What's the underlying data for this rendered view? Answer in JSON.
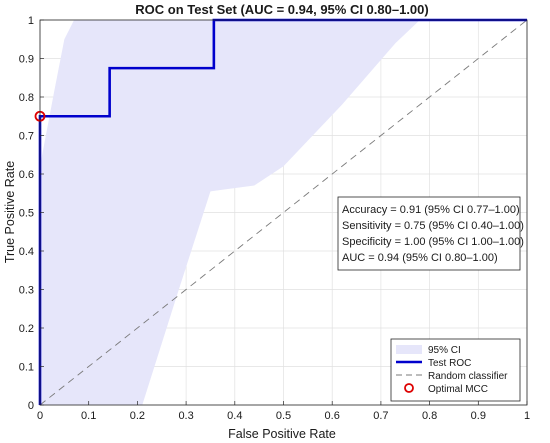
{
  "chart_data": {
    "type": "line",
    "title": "ROC on Test Set (AUC = 0.94, 95% CI 0.80–1.00)",
    "xlabel": "False Positive Rate",
    "ylabel": "True Positive Rate",
    "xlim": [
      0,
      1
    ],
    "ylim": [
      0,
      1
    ],
    "xticks": [
      "0",
      "0.1",
      "0.2",
      "0.3",
      "0.4",
      "0.5",
      "0.6",
      "0.7",
      "0.8",
      "0.9",
      "1"
    ],
    "yticks": [
      "0",
      "0.1",
      "0.2",
      "0.3",
      "0.4",
      "0.5",
      "0.6",
      "0.7",
      "0.8",
      "0.9",
      "1"
    ],
    "grid": true,
    "legend_position": "bottom-right",
    "series": [
      {
        "name": "95% CI",
        "kind": "band",
        "color": "#e6e6fa",
        "upper": [
          [
            0,
            0
          ],
          [
            0,
            0.62
          ],
          [
            0.03,
            0.82
          ],
          [
            0.05,
            0.95
          ],
          [
            0.07,
            1
          ],
          [
            0.78,
            1
          ]
        ],
        "lower": [
          [
            0.21,
            0
          ],
          [
            0.28,
            0.28
          ],
          [
            0.35,
            0.555
          ],
          [
            0.38,
            0.56
          ],
          [
            0.44,
            0.57
          ],
          [
            0.5,
            0.62
          ],
          [
            0.62,
            0.78
          ],
          [
            0.73,
            0.94
          ],
          [
            0.78,
            1
          ]
        ]
      },
      {
        "name": "Test ROC",
        "kind": "line",
        "color": "#0000cc",
        "x": [
          0,
          0,
          0.143,
          0.143,
          0.357,
          0.357,
          1
        ],
        "y": [
          0,
          0.75,
          0.75,
          0.875,
          0.875,
          1,
          1
        ]
      },
      {
        "name": "Random classifier",
        "kind": "dashed",
        "color": "#7a7a7a",
        "x": [
          0,
          1
        ],
        "y": [
          0,
          1
        ]
      },
      {
        "name": "Optimal MCC",
        "kind": "marker",
        "color": "#dd0000",
        "x": [
          0
        ],
        "y": [
          0.75
        ]
      }
    ],
    "annotation": [
      "Accuracy = 0.91 (95% CI 0.77–1.00)",
      "Sensitivity = 0.75 (95% CI 0.40–1.00)",
      "Specificity = 1.00 (95% CI 1.00–1.00)",
      "AUC = 0.94 (95% CI 0.80–1.00)"
    ]
  }
}
